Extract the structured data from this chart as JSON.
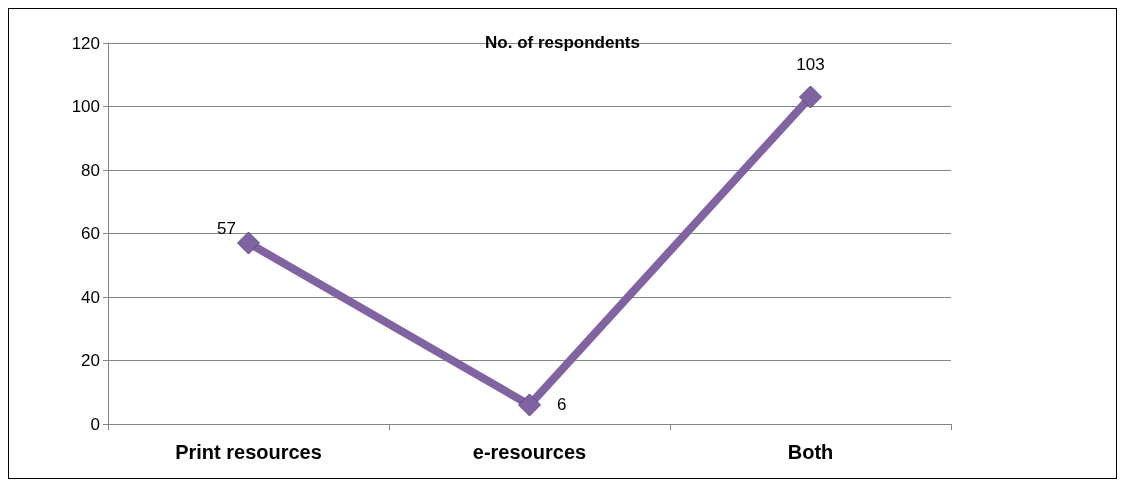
{
  "chart_data": {
    "type": "line",
    "title": "No. of respondents",
    "categories": [
      "Print resources",
      "e-resources",
      "Both"
    ],
    "series": [
      {
        "color": "#8064a2",
        "values": [
          57,
          6,
          103
        ]
      }
    ],
    "ylim": [
      0,
      120
    ],
    "yticks": [
      0,
      20,
      40,
      60,
      80,
      100,
      120
    ],
    "grid": "y",
    "marker": "diamond",
    "line_style": "solid",
    "data_labels": true
  }
}
